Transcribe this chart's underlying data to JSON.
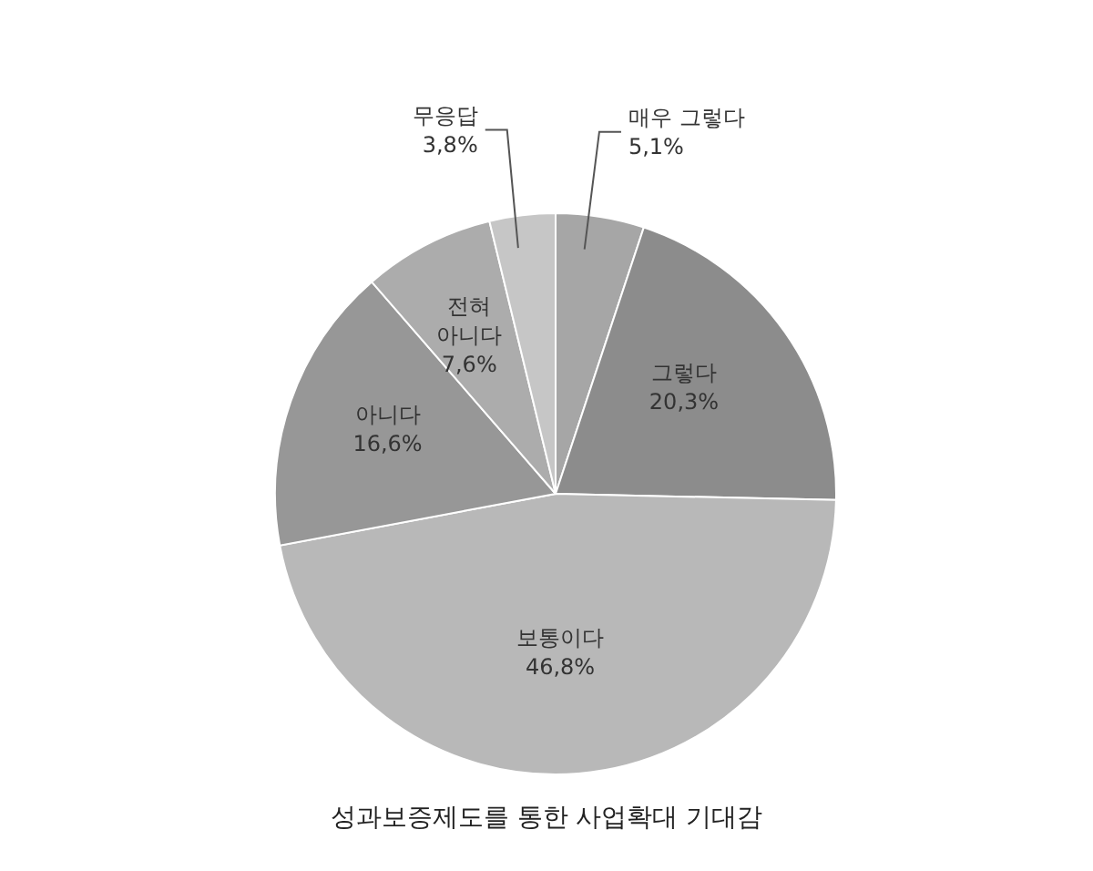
{
  "chart_data": {
    "type": "pie",
    "title": "성과보증제도를 통한 사업확대 기대감",
    "categories": [
      "매우 그렇다",
      "그렇다",
      "보통이다",
      "아니다",
      "전혀 아니다",
      "무응답"
    ],
    "values": [
      5.1,
      20.3,
      46.8,
      16.6,
      7.6,
      3.8
    ],
    "value_labels": [
      "5,1%",
      "20,3%",
      "46,8%",
      "16,6%",
      "7,6%",
      "3,8%"
    ],
    "colors": [
      "#a6a6a6",
      "#8c8c8c",
      "#b8b8b8",
      "#979797",
      "#acacac",
      "#c6c6c6"
    ]
  }
}
